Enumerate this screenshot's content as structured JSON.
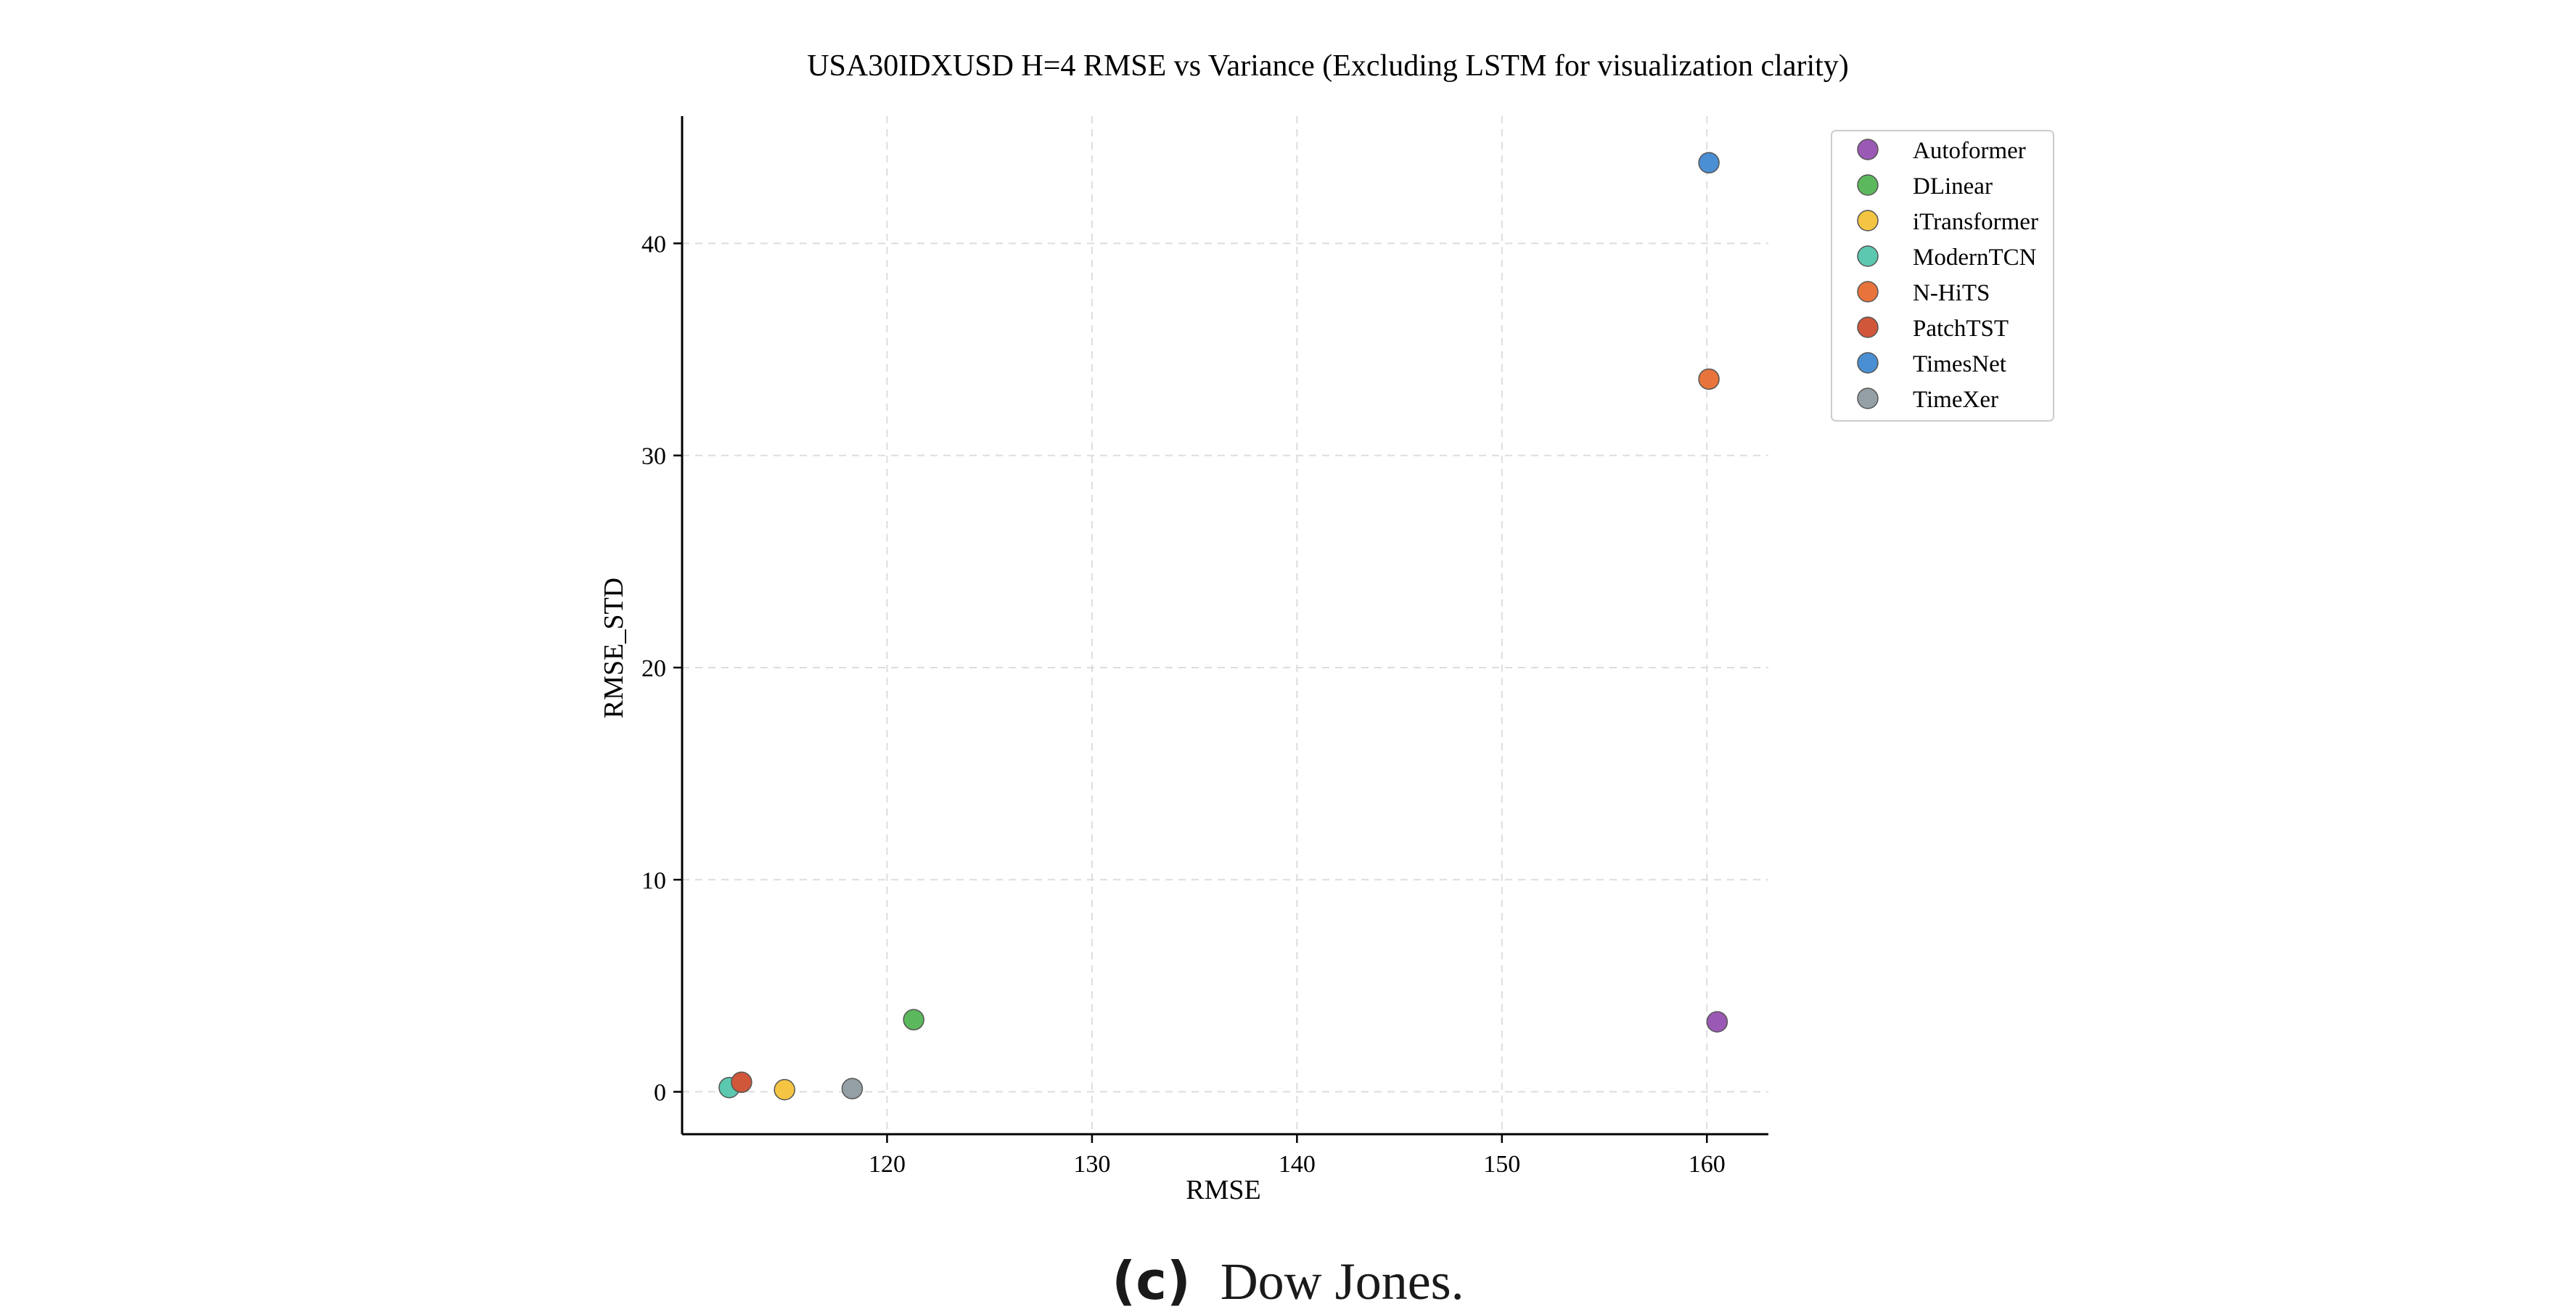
{
  "chart_data": {
    "type": "scatter",
    "title": "USA30IDXUSD H=4 RMSE vs Variance (Excluding LSTM for visualization clarity)",
    "xlabel": "RMSE",
    "ylabel": "RMSE_STD",
    "xlim": [
      110.0,
      163.0
    ],
    "ylim": [
      -2.0,
      46.0
    ],
    "xticks": [
      120,
      130,
      140,
      150,
      160
    ],
    "yticks": [
      0,
      10,
      20,
      30,
      40
    ],
    "grid": true,
    "legend_position": "outside-top-right",
    "series": [
      {
        "name": "Autoformer",
        "color": "#9b59b6",
        "points": [
          {
            "x": 160.5,
            "y": 3.3
          }
        ]
      },
      {
        "name": "DLinear",
        "color": "#5cb85c",
        "points": [
          {
            "x": 121.3,
            "y": 3.4
          }
        ]
      },
      {
        "name": "iTransformer",
        "color": "#f4c542",
        "points": [
          {
            "x": 115.0,
            "y": 0.1
          }
        ]
      },
      {
        "name": "ModernTCN",
        "color": "#5bc8af",
        "points": [
          {
            "x": 112.3,
            "y": 0.2
          }
        ]
      },
      {
        "name": "N-HiTS",
        "color": "#e8743b",
        "points": [
          {
            "x": 160.1,
            "y": 33.6
          }
        ]
      },
      {
        "name": "PatchTST",
        "color": "#d1573a",
        "points": [
          {
            "x": 112.9,
            "y": 0.45
          }
        ]
      },
      {
        "name": "TimesNet",
        "color": "#4a8fd4",
        "points": [
          {
            "x": 160.1,
            "y": 43.8
          }
        ]
      },
      {
        "name": "TimeXer",
        "color": "#95a0a6",
        "points": [
          {
            "x": 118.3,
            "y": 0.15
          }
        ]
      }
    ]
  },
  "caption": {
    "label": "(c)",
    "text": "Dow Jones."
  }
}
